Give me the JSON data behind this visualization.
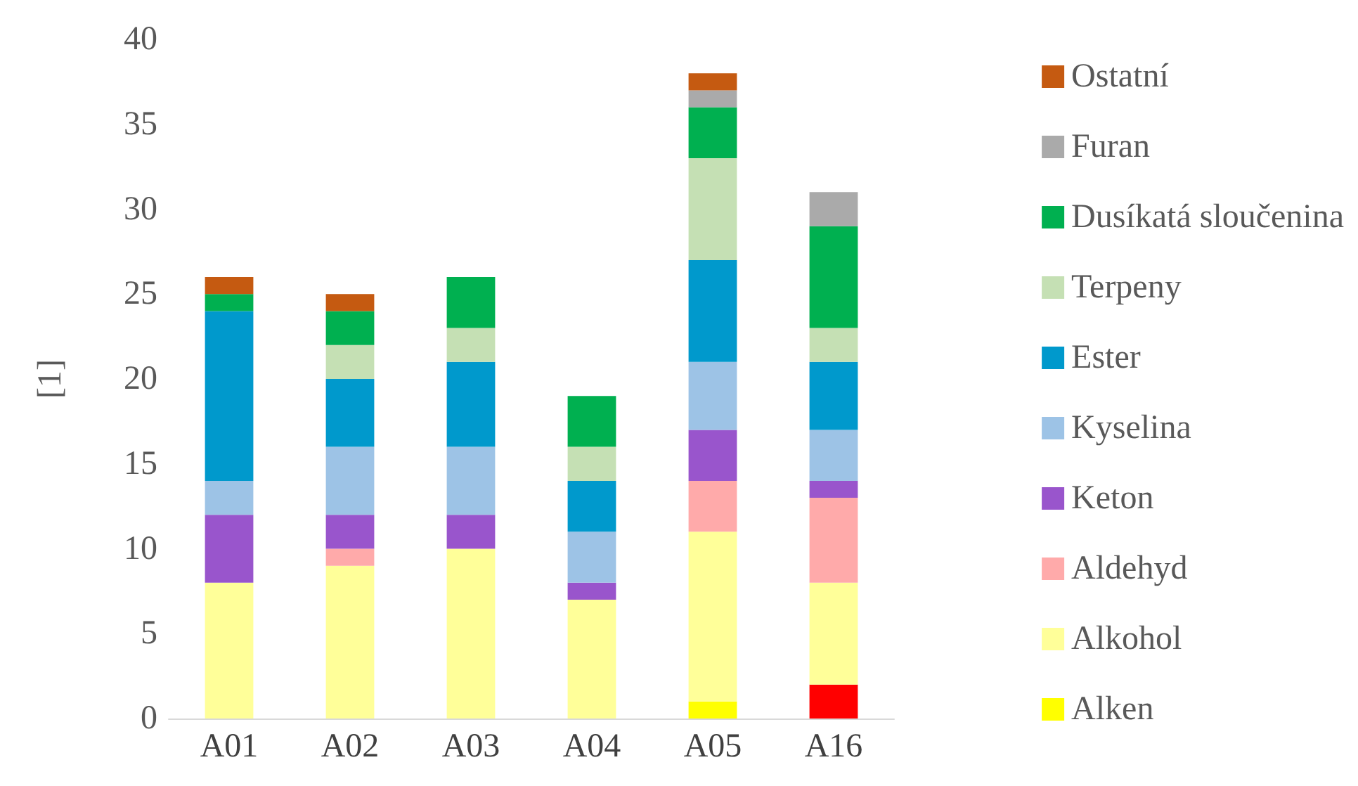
{
  "chart_data": {
    "type": "bar",
    "stacked": true,
    "ylabel": "[1]",
    "categories": [
      "A01",
      "A02",
      "A03",
      "A04",
      "A05",
      "A16"
    ],
    "ylim": [
      0,
      40
    ],
    "yticks": [
      0,
      5,
      10,
      15,
      20,
      25,
      30,
      35,
      40
    ],
    "grid": false,
    "legend": "right",
    "series": [
      {
        "name": "Alken",
        "color": "#ffff00",
        "colors": [
          "#ffff00",
          "#ffff00",
          "#ffff00",
          "#ffff00",
          "#ffff00",
          "#ff0000"
        ],
        "values": [
          0,
          0,
          0,
          0,
          1,
          2
        ]
      },
      {
        "name": "Alkohol",
        "color": "#ffff99",
        "values": [
          8,
          9,
          10,
          7,
          10,
          6
        ]
      },
      {
        "name": "Aldehyd",
        "color": "#ffaaaa",
        "values": [
          0,
          1,
          0,
          0,
          3,
          5
        ]
      },
      {
        "name": "Keton",
        "color": "#9955cc",
        "values": [
          4,
          2,
          2,
          1,
          3,
          1
        ]
      },
      {
        "name": "Kyselina",
        "color": "#9dc3e6",
        "values": [
          2,
          4,
          4,
          3,
          4,
          3
        ]
      },
      {
        "name": "Ester",
        "color": "#0099cc",
        "values": [
          10,
          4,
          5,
          3,
          6,
          4
        ]
      },
      {
        "name": "Terpeny",
        "color": "#c5e0b4",
        "values": [
          0,
          2,
          2,
          2,
          6,
          2
        ]
      },
      {
        "name": "Dusíkatá sloučenina",
        "color": "#00b050",
        "values": [
          1,
          2,
          3,
          3,
          3,
          6
        ]
      },
      {
        "name": "Furan",
        "color": "#aaaaaa",
        "values": [
          0,
          0,
          0,
          0,
          1,
          2
        ]
      },
      {
        "name": "Ostatní",
        "color": "#c55a11",
        "values": [
          1,
          1,
          0,
          0,
          1,
          0
        ]
      }
    ]
  }
}
